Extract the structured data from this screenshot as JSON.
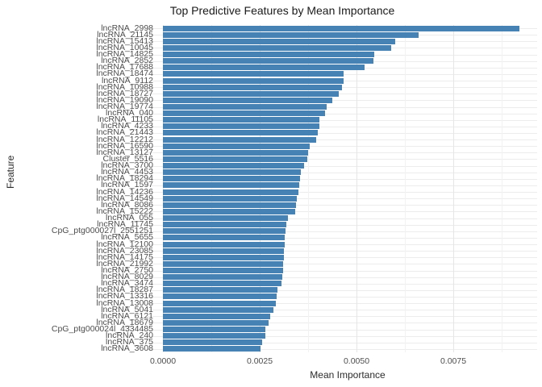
{
  "title": "Top Predictive Features by Mean Importance",
  "colors": {
    "bar": "#4682b4",
    "grid_major": "#e6e6e6",
    "grid_minor": "#f2f2f2",
    "row_grid": "#ececec",
    "tick_text": "#4d4d4d",
    "title_text": "#1a1a1a"
  },
  "chart_data": {
    "type": "bar",
    "orientation": "horizontal",
    "title": "Top Predictive Features by Mean Importance",
    "xlabel": "Mean Importance",
    "ylabel": "Feature",
    "grid": true,
    "legend": false,
    "xlim": [
      0,
      0.0096
    ],
    "xticks": [
      0,
      0.0025,
      0.005,
      0.0075
    ],
    "xtick_labels": [
      "0.0000",
      "0.0025",
      "0.0050",
      "0.0075"
    ],
    "minor_tick_step": 0.00125,
    "bar_color": "#4682b4",
    "categories": [
      "lncRNA_2998",
      "lncRNA_21145",
      "lncRNA_15413",
      "lncRNA_10045",
      "lncRNA_14825",
      "lncRNA_2852",
      "lncRNA_17688",
      "lncRNA_18474",
      "lncRNA_9112",
      "lncRNA_10988",
      "lncRNA_18727",
      "lncRNA_19090",
      "lncRNA_19774",
      "lncRNA_040",
      "lncRNA_11105",
      "lncRNA_4233",
      "lncRNA_21443",
      "lncRNA_12212",
      "lncRNA_16590",
      "lncRNA_13127",
      "Cluster_5516",
      "lncRNA_3700",
      "lncRNA_4453",
      "lncRNA_18294",
      "lncRNA_1597",
      "lncRNA_14236",
      "lncRNA_14549",
      "lncRNA_8086",
      "lncRNA_15222",
      "lncRNA_055",
      "lncRNA_11745",
      "CpG_ptg000027l_2551251",
      "lncRNA_5655",
      "lncRNA_12100",
      "lncRNA_23085",
      "lncRNA_14175",
      "lncRNA_21992",
      "lncRNA_2750",
      "lncRNA_8029",
      "lncRNA_3474",
      "lncRNA_18287",
      "lncRNA_13316",
      "lncRNA_13008",
      "lncRNA_5041",
      "lncRNA_6121",
      "lncRNA_18679",
      "CpG_ptg000024l_4334485",
      "lncRNA_240",
      "lncRNA_375",
      "lncRNA_3608"
    ],
    "values": [
      0.0092,
      0.0066,
      0.006,
      0.0059,
      0.00546,
      0.00544,
      0.0052,
      0.00467,
      0.00466,
      0.00462,
      0.00454,
      0.00438,
      0.00423,
      0.00419,
      0.00405,
      0.00404,
      0.004,
      0.00396,
      0.00379,
      0.00374,
      0.00373,
      0.00365,
      0.00356,
      0.00355,
      0.00353,
      0.0035,
      0.00346,
      0.00344,
      0.00342,
      0.00323,
      0.00319,
      0.00317,
      0.00315,
      0.00314,
      0.00313,
      0.00312,
      0.00311,
      0.0031,
      0.00308,
      0.00306,
      0.00296,
      0.00294,
      0.00292,
      0.00286,
      0.00277,
      0.00273,
      0.00265,
      0.00264,
      0.00256,
      0.00252
    ]
  }
}
